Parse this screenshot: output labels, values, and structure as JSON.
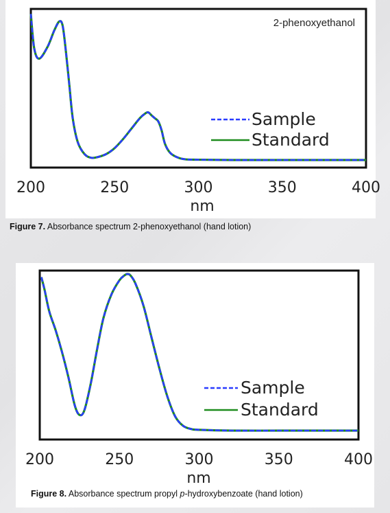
{
  "chart_data": [
    {
      "type": "line",
      "annotation": "2-phenoxyethanol",
      "xlabel": "nm",
      "ylabel": "",
      "xlim": [
        200,
        400
      ],
      "xticks": [
        "200",
        "250",
        "300",
        "350",
        "400"
      ],
      "grid": false,
      "legend_position": "right",
      "series": [
        {
          "name": "Sample",
          "style": "dashed",
          "color": "#2a3cff",
          "x": [
            200,
            202,
            205,
            210,
            214,
            217,
            219,
            221,
            223,
            225,
            228,
            232,
            236,
            240,
            245,
            250,
            255,
            260,
            265,
            268,
            270,
            272,
            274,
            276,
            278,
            280,
            283,
            287,
            292,
            300,
            320,
            350,
            380,
            400
          ],
          "y": [
            0.98,
            0.75,
            0.68,
            0.76,
            0.87,
            0.93,
            0.9,
            0.72,
            0.5,
            0.28,
            0.12,
            0.04,
            0.015,
            0.02,
            0.04,
            0.08,
            0.14,
            0.21,
            0.28,
            0.31,
            0.32,
            0.3,
            0.28,
            0.26,
            0.2,
            0.11,
            0.05,
            0.02,
            0.005,
            0.002,
            0.0,
            0.0,
            0.0,
            0.0
          ]
        },
        {
          "name": "Standard",
          "style": "solid",
          "color": "#1e8c1e",
          "x": [
            200,
            202,
            205,
            210,
            214,
            217,
            219,
            221,
            223,
            225,
            228,
            232,
            236,
            240,
            245,
            250,
            255,
            260,
            265,
            268,
            270,
            272,
            274,
            276,
            278,
            280,
            283,
            287,
            292,
            300,
            320,
            350,
            380,
            400
          ],
          "y": [
            0.98,
            0.75,
            0.68,
            0.76,
            0.87,
            0.93,
            0.9,
            0.72,
            0.5,
            0.28,
            0.12,
            0.04,
            0.015,
            0.02,
            0.04,
            0.08,
            0.14,
            0.21,
            0.28,
            0.31,
            0.32,
            0.3,
            0.28,
            0.26,
            0.2,
            0.11,
            0.05,
            0.02,
            0.005,
            0.002,
            0.0,
            0.0,
            0.0,
            0.0
          ]
        }
      ]
    },
    {
      "type": "line",
      "annotation": "",
      "xlabel": "nm",
      "ylabel": "",
      "xlim": [
        200,
        400
      ],
      "xticks": [
        "200",
        "250",
        "300",
        "350",
        "400"
      ],
      "grid": false,
      "legend_position": "right",
      "series": [
        {
          "name": "Sample",
          "style": "dashed",
          "color": "#2a3cff",
          "x": [
            201,
            203,
            206,
            210,
            214,
            218,
            222,
            225,
            228,
            232,
            236,
            240,
            245,
            250,
            253,
            255,
            257,
            260,
            265,
            270,
            275,
            280,
            285,
            290,
            295,
            300,
            320,
            350,
            380,
            400
          ],
          "y": [
            0.98,
            0.9,
            0.76,
            0.64,
            0.5,
            0.34,
            0.16,
            0.1,
            0.13,
            0.3,
            0.52,
            0.72,
            0.87,
            0.96,
            0.99,
            1.0,
            0.99,
            0.94,
            0.8,
            0.6,
            0.4,
            0.22,
            0.09,
            0.03,
            0.01,
            0.005,
            0.0,
            0.0,
            0.0,
            0.0
          ]
        },
        {
          "name": "Standard",
          "style": "solid",
          "color": "#1e8c1e",
          "x": [
            201,
            203,
            206,
            210,
            214,
            218,
            222,
            225,
            228,
            232,
            236,
            240,
            245,
            250,
            253,
            255,
            257,
            260,
            265,
            270,
            275,
            280,
            285,
            290,
            295,
            300,
            320,
            350,
            380,
            400
          ],
          "y": [
            0.98,
            0.9,
            0.76,
            0.64,
            0.5,
            0.34,
            0.16,
            0.1,
            0.13,
            0.3,
            0.52,
            0.72,
            0.87,
            0.96,
            0.99,
            1.0,
            0.99,
            0.94,
            0.8,
            0.6,
            0.4,
            0.22,
            0.09,
            0.03,
            0.01,
            0.005,
            0.0,
            0.0,
            0.0,
            0.0
          ]
        }
      ]
    }
  ],
  "captions": [
    {
      "label": "Figure 7.",
      "text": "Absorbance spectrum 2-phenoxyethanol (hand lotion)"
    },
    {
      "label": "Figure 8.",
      "text_before": "Absorbance spectrum propyl ",
      "italic": "p",
      "text_after": "-hydroxybenzoate (hand lotion)"
    }
  ]
}
